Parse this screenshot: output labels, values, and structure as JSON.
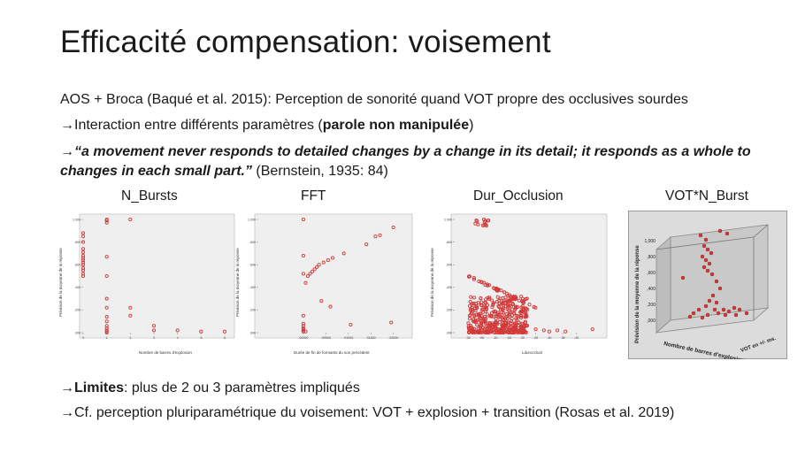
{
  "slide": {
    "title": "Efficacité compensation: voisement",
    "line1": "AOS + Broca (Baqué et al. 2015): Perception de sonorité quand VOT propre des occlusives sourdes",
    "arrow": "→",
    "line2_pre": "Interaction entre différents paramètres (",
    "line2_bold": "parole non manipulée",
    "line2_post": ")",
    "quote_text": "“a movement never responds to detailed changes by a change in its detail; it responds as a whole to changes in each small part.”",
    "quote_cite": " (Bernstein, 1935: 84)",
    "limites_bold": "Limites",
    "limites_rest": ": plus de 2 ou 3 paramètres impliqués",
    "cf_line": "Cf. perception pluriparamétrique du voisement: VOT + explosion + transition (Rosas et al. 2019)"
  },
  "colors": {
    "marker": "#d23a3a",
    "plot_bg": "#efefef",
    "frame": "#999999"
  },
  "chart_data": [
    {
      "type": "scatter",
      "title": "N_Bursts",
      "xlabel": "Nombre de barres d'explosion",
      "ylabel": "Prévision de la moyenne de la réponse",
      "xlim": [
        0,
        6
      ],
      "ylim": [
        0,
        1
      ],
      "yticks": [
        ".000",
        ".200",
        ".400",
        ".600",
        ".800",
        "1.000"
      ],
      "x": [
        0,
        0,
        0,
        0,
        0,
        0,
        0,
        0,
        0,
        0,
        0,
        0,
        0,
        0,
        1,
        1,
        1,
        1,
        1,
        1,
        1,
        1,
        1,
        1,
        1,
        1,
        1,
        1,
        2,
        2,
        2,
        3,
        3,
        4,
        5,
        6
      ],
      "y": [
        0.88,
        0.85,
        0.8,
        0.74,
        0.71,
        0.68,
        0.66,
        0.64,
        0.62,
        0.6,
        0.57,
        0.55,
        0.52,
        0.5,
        1.0,
        0.99,
        0.97,
        0.67,
        0.5,
        0.3,
        0.22,
        0.14,
        0.1,
        0.06,
        0.04,
        0.02,
        0.01,
        0.0,
        1.0,
        0.22,
        0.15,
        0.06,
        0.02,
        0.02,
        0.01,
        0.01
      ]
    },
    {
      "type": "scatter",
      "title": "FFT",
      "xlabel": "Durée de fin de formants du son précédent",
      "ylabel": "Prévision de la moyenne de la réponse",
      "xlim": [
        -0.01,
        0.023
      ],
      "ylim": [
        0,
        1
      ],
      "xticks": [
        ".00000",
        ".00500",
        ".01000",
        ".01500",
        ".02000"
      ],
      "x": [
        0.0,
        0.0,
        0.0,
        0.0,
        0.0,
        0.0,
        0.0,
        0.0,
        0.0,
        0.0,
        0.0005,
        0.001,
        0.0015,
        0.002,
        0.0025,
        0.003,
        0.0035,
        0.0045,
        0.0055,
        0.0065,
        0.006,
        0.009,
        0.014,
        0.016,
        0.017,
        0.02,
        0.0105,
        0.0195,
        0.0005,
        0.004
      ],
      "y": [
        1.0,
        0.68,
        0.52,
        0.15,
        0.08,
        0.06,
        0.04,
        0.03,
        0.02,
        0.01,
        0.44,
        0.5,
        0.52,
        0.54,
        0.56,
        0.58,
        0.6,
        0.62,
        0.64,
        0.66,
        0.23,
        0.7,
        0.78,
        0.85,
        0.86,
        0.93,
        0.07,
        0.09,
        0.01,
        0.28
      ]
    },
    {
      "type": "scatter",
      "title": "Dur_Occlusion",
      "xlabel": "Ldurocclust",
      "ylabel": "Prévision de la moyenne de la réponse",
      "xlim": [
        -0.05,
        0.5
      ],
      "ylim": [
        0,
        1
      ],
      "xticks": [
        ".00",
        ".05",
        ".10",
        ".15",
        ".20",
        ".25",
        ".30",
        ".35",
        ".40"
      ]
    },
    {
      "type": "scatter3d",
      "title": "VOT*N_Burst",
      "ylabel": "Prévision de la moyenne de la réponse",
      "xlabel": "Nombre de barres d'explosion",
      "zlabel": "VOT en +/- ms.",
      "zticks": [
        ",000",
        ",200",
        ",400",
        ",600",
        ",800",
        "1,000"
      ]
    }
  ]
}
